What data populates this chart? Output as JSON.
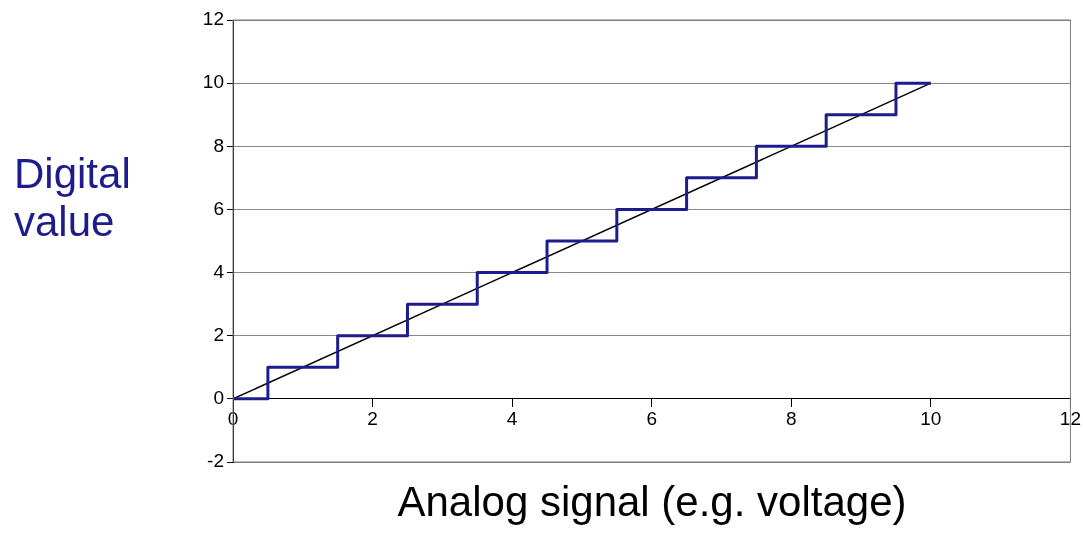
{
  "chart_data": {
    "type": "line",
    "xlabel": "Analog signal (e.g. voltage)",
    "ylabel": "Digital value",
    "series": [
      {
        "type": "step",
        "color": "#1c1c8c",
        "x": [
          0,
          0.5,
          1.5,
          2.5,
          3.5,
          4.5,
          5.5,
          6.5,
          7.5,
          8.5,
          9.5,
          10
        ],
        "values": [
          0,
          1,
          2,
          3,
          4,
          5,
          6,
          7,
          8,
          9,
          10,
          10
        ]
      },
      {
        "type": "line",
        "color": "#000000",
        "x": [
          0,
          10
        ],
        "values": [
          0,
          10
        ]
      }
    ],
    "xlim": [
      0,
      12
    ],
    "xticks": [
      0,
      2,
      4,
      6,
      8,
      10,
      12
    ],
    "ylim": [
      -2,
      12
    ],
    "yticks": [
      -2,
      0,
      2,
      4,
      6,
      8,
      10,
      12
    ],
    "grid": "y",
    "legend": false,
    "marker": "none",
    "line_style": "solid"
  }
}
